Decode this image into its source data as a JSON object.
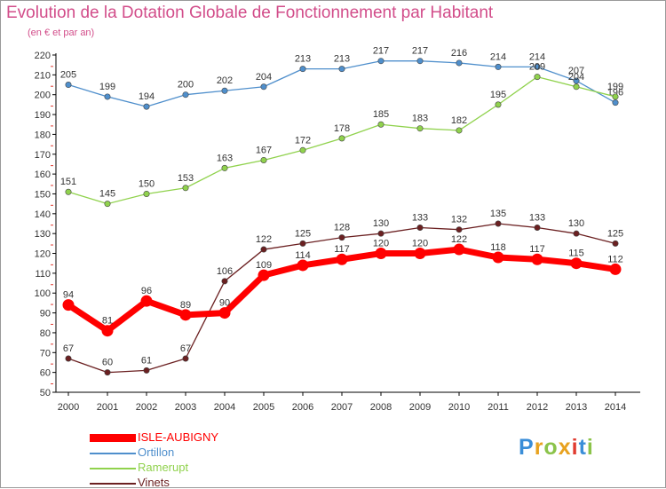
{
  "header": {
    "title": "Evolution de la Dotation Globale de Fonctionnement par Habitant",
    "subtitle": "(en € et par an)"
  },
  "chart_data": {
    "type": "line",
    "title": "Evolution de la Dotation Globale de Fonctionnement par Habitant",
    "subtitle": "(en € et par an)",
    "xlabel": "",
    "ylabel": "",
    "ylim": [
      50,
      220
    ],
    "ytick_step": 10,
    "grid": false,
    "legend_position": "bottom-left",
    "categories": [
      "2000",
      "2001",
      "2002",
      "2003",
      "2004",
      "2005",
      "2006",
      "2007",
      "2008",
      "2009",
      "2010",
      "2011",
      "2012",
      "2013",
      "2014"
    ],
    "series": [
      {
        "name": "ISLE-AUBIGNY",
        "color": "#ff0000",
        "values": [
          94,
          81,
          96,
          89,
          90,
          109,
          114,
          117,
          120,
          120,
          122,
          118,
          117,
          115,
          112
        ]
      },
      {
        "name": "Ortillon",
        "color": "#4f8fcc",
        "values": [
          205,
          199,
          194,
          200,
          202,
          204,
          213,
          213,
          217,
          217,
          216,
          214,
          214,
          207,
          196
        ]
      },
      {
        "name": "Ramerupt",
        "color": "#90d24d",
        "values": [
          151,
          145,
          150,
          153,
          163,
          167,
          172,
          178,
          185,
          183,
          182,
          195,
          209,
          204,
          199
        ]
      },
      {
        "name": "Vinets",
        "color": "#6b2021",
        "values": [
          67,
          60,
          61,
          67,
          106,
          122,
          125,
          128,
          130,
          133,
          132,
          135,
          133,
          130,
          125
        ]
      }
    ]
  },
  "brand": {
    "letters": [
      "P",
      "r",
      "o",
      "x",
      "i",
      "t",
      "i"
    ],
    "colors": [
      "#3a8ed8",
      "#e8a21f",
      "#8bc34a",
      "#e8a21f",
      "#e03b30",
      "#3a8ed8",
      "#8bc34a"
    ]
  }
}
